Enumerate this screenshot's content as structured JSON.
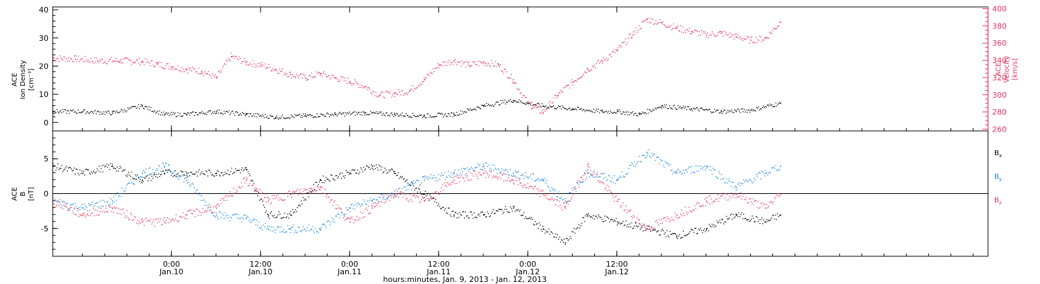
{
  "chart_data": [
    {
      "panel": "top",
      "type": "scatter",
      "ylabel_left": [
        "ACE",
        "Ion Density",
        "[cm⁻³]"
      ],
      "ylabel_right": [
        "ACE",
        "Velocity",
        "[km/s]"
      ],
      "ylim_left": [
        -3,
        41
      ],
      "ylim_right": [
        258,
        402
      ],
      "yticks_left": [
        0,
        10,
        20,
        30,
        40
      ],
      "yticks_right": [
        260,
        280,
        300,
        320,
        340,
        360,
        380,
        400
      ],
      "colors": {
        "density": "#000000",
        "velocity": "#e8315e"
      },
      "series": [
        {
          "key": "density",
          "axis": "left",
          "x": [
            -16,
            -12,
            -8,
            -4,
            -1,
            2,
            6,
            10,
            14,
            18,
            22,
            26,
            30,
            34,
            38,
            42,
            46,
            50,
            54,
            58,
            60,
            63,
            66,
            70,
            74,
            78,
            82
          ],
          "y": [
            4,
            4,
            3.5,
            6,
            3,
            3,
            4,
            3,
            2,
            2.5,
            3,
            3.5,
            3,
            2.5,
            3,
            6,
            8,
            6,
            5,
            4,
            4,
            3,
            6,
            5,
            4,
            4.5,
            7
          ]
        },
        {
          "key": "velocity",
          "axis": "right",
          "x": [
            -16,
            -13,
            -10,
            -7,
            -4,
            -2,
            0,
            2,
            4,
            6,
            8,
            10,
            12,
            14,
            16,
            18,
            20,
            22,
            24,
            26,
            28,
            30,
            32,
            34,
            36,
            38,
            40,
            42,
            44,
            46,
            48,
            50,
            52,
            54,
            56,
            58,
            60,
            62,
            64,
            66,
            68,
            70,
            72,
            74,
            76,
            78,
            80,
            82
          ],
          "y": [
            343,
            342,
            340,
            340,
            339,
            336,
            333,
            330,
            328,
            320,
            345,
            338,
            335,
            330,
            324,
            320,
            325,
            320,
            316,
            310,
            300,
            302,
            305,
            318,
            335,
            340,
            335,
            338,
            335,
            318,
            290,
            280,
            300,
            315,
            330,
            340,
            352,
            370,
            388,
            384,
            378,
            374,
            370,
            372,
            368,
            364,
            366,
            385
          ]
        }
      ]
    },
    {
      "panel": "bottom",
      "type": "scatter",
      "ylabel_left": [
        "ACE",
        "B",
        "[nT]"
      ],
      "ylim": [
        -9,
        9
      ],
      "yticks": [
        -5,
        0,
        5
      ],
      "zero_line": true,
      "legend": [
        {
          "label": "B",
          "sub": "x",
          "color": "#000000"
        },
        {
          "label": "B",
          "sub": "y",
          "color": "#1b86e3"
        },
        {
          "label": "B",
          "sub": "z",
          "color": "#e8315e"
        }
      ],
      "series": [
        {
          "key": "Bx",
          "x": [
            -16,
            -12,
            -8,
            -4,
            -1,
            2,
            6,
            10,
            13,
            16,
            20,
            24,
            27,
            30,
            34,
            38,
            42,
            46,
            50,
            53,
            56,
            60,
            64,
            68,
            72,
            76,
            80,
            82
          ],
          "y": [
            4,
            3,
            4,
            2,
            3,
            3,
            3,
            3.5,
            -3,
            -3,
            2,
            3,
            4,
            3,
            0,
            -3,
            -3,
            -2,
            -5,
            -7,
            -3,
            -4,
            -5,
            -6,
            -5,
            -3,
            -4,
            -3
          ]
        },
        {
          "key": "By",
          "x": [
            -16,
            -12,
            -8,
            -4,
            -1,
            2,
            6,
            10,
            13,
            16,
            20,
            24,
            27,
            30,
            34,
            38,
            42,
            46,
            50,
            53,
            56,
            60,
            64,
            68,
            72,
            76,
            80,
            82
          ],
          "y": [
            -1,
            -2,
            -1,
            3,
            4,
            2,
            -3,
            -3.5,
            -5,
            -5,
            -5,
            -2,
            -1,
            0,
            2,
            3,
            4,
            3,
            2,
            -1,
            3,
            2,
            6,
            3,
            4,
            1,
            3,
            4
          ]
        },
        {
          "key": "Bz",
          "x": [
            -16,
            -12,
            -8,
            -4,
            -1,
            2,
            6,
            10,
            13,
            16,
            20,
            24,
            27,
            30,
            34,
            38,
            42,
            46,
            50,
            53,
            56,
            60,
            64,
            68,
            72,
            76,
            80,
            82
          ],
          "y": [
            -1,
            -3,
            -2,
            -4,
            -4,
            -3,
            -2,
            2,
            -1,
            0,
            1,
            -4,
            -2,
            0,
            -1,
            2,
            3,
            2,
            0,
            -2,
            4,
            -1,
            -5,
            -3,
            -1,
            0,
            -2,
            0
          ]
        }
      ]
    }
  ],
  "x_axis": {
    "range": [
      -16,
      110
    ],
    "ticks": [
      {
        "x": 0,
        "time": "0:00",
        "date": "Jan.10"
      },
      {
        "x": 12,
        "time": "12:00",
        "date": "Jan.10"
      },
      {
        "x": 24,
        "time": "0:00",
        "date": "Jan.11"
      },
      {
        "x": 36,
        "time": "12:00",
        "date": "Jan.11"
      },
      {
        "x": 48,
        "time": "0:00",
        "date": "Jan.12"
      },
      {
        "x": 60,
        "time": "12:00",
        "date": "Jan.12"
      }
    ],
    "label": "hours:minutes, Jan. 9, 2013 - Jan. 12, 2013"
  }
}
